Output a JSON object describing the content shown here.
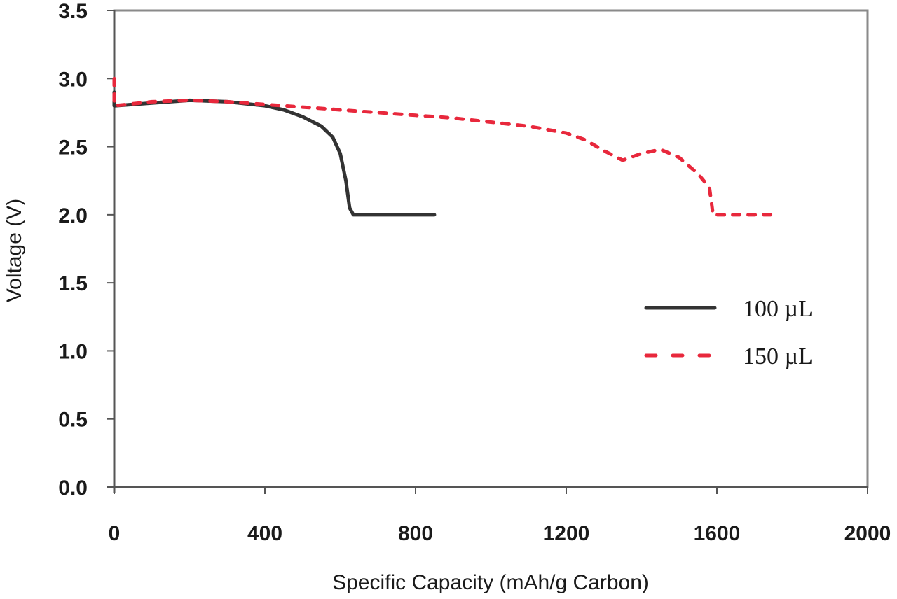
{
  "chart_data": {
    "type": "line",
    "title": "",
    "xlabel": "Specific Capacity (mAh/g Carbon)",
    "ylabel": "Voltage (V)",
    "xlim": [
      0,
      2000
    ],
    "ylim": [
      0,
      3.5
    ],
    "xticks": [
      0,
      400,
      800,
      1200,
      1600,
      2000
    ],
    "yticks": [
      0.0,
      0.5,
      1.0,
      1.5,
      2.0,
      2.5,
      3.0,
      3.5
    ],
    "xtick_labels": [
      "0",
      "400",
      "800",
      "1200",
      "1600",
      "2000"
    ],
    "ytick_labels": [
      "0.0",
      "0.5",
      "1.0",
      "1.5",
      "2.0",
      "2.5",
      "3.0",
      "3.5"
    ],
    "grid": false,
    "legend_position": "center-right",
    "series": [
      {
        "name": "100 µL",
        "color": "#333333",
        "style": "solid",
        "x": [
          0,
          0,
          100,
          200,
          300,
          400,
          450,
          500,
          550,
          580,
          600,
          615,
          625,
          635,
          645,
          700,
          800,
          850
        ],
        "y": [
          2.9,
          2.8,
          2.82,
          2.84,
          2.83,
          2.8,
          2.77,
          2.72,
          2.65,
          2.57,
          2.45,
          2.25,
          2.05,
          2.0,
          2.0,
          2.0,
          2.0,
          2.0
        ]
      },
      {
        "name": "150 µL",
        "color": "#e8283c",
        "style": "dashed",
        "x": [
          0,
          0,
          100,
          200,
          300,
          400,
          500,
          600,
          700,
          800,
          900,
          1000,
          1100,
          1200,
          1250,
          1300,
          1350,
          1400,
          1450,
          1500,
          1550,
          1580,
          1590,
          1600,
          1700,
          1760
        ],
        "y": [
          3.0,
          2.8,
          2.83,
          2.84,
          2.83,
          2.81,
          2.79,
          2.77,
          2.75,
          2.73,
          2.71,
          2.68,
          2.65,
          2.6,
          2.55,
          2.47,
          2.4,
          2.45,
          2.48,
          2.42,
          2.3,
          2.2,
          2.0,
          2.0,
          2.0,
          2.0
        ]
      }
    ]
  },
  "axes": {
    "x_title": "Specific Capacity (mAh/g Carbon)",
    "y_title": "Voltage (V)"
  },
  "legend": {
    "items": [
      {
        "label": "100 µL",
        "color": "#333333",
        "style": "solid"
      },
      {
        "label": "150 µL",
        "color": "#e8283c",
        "style": "dashed"
      }
    ]
  }
}
